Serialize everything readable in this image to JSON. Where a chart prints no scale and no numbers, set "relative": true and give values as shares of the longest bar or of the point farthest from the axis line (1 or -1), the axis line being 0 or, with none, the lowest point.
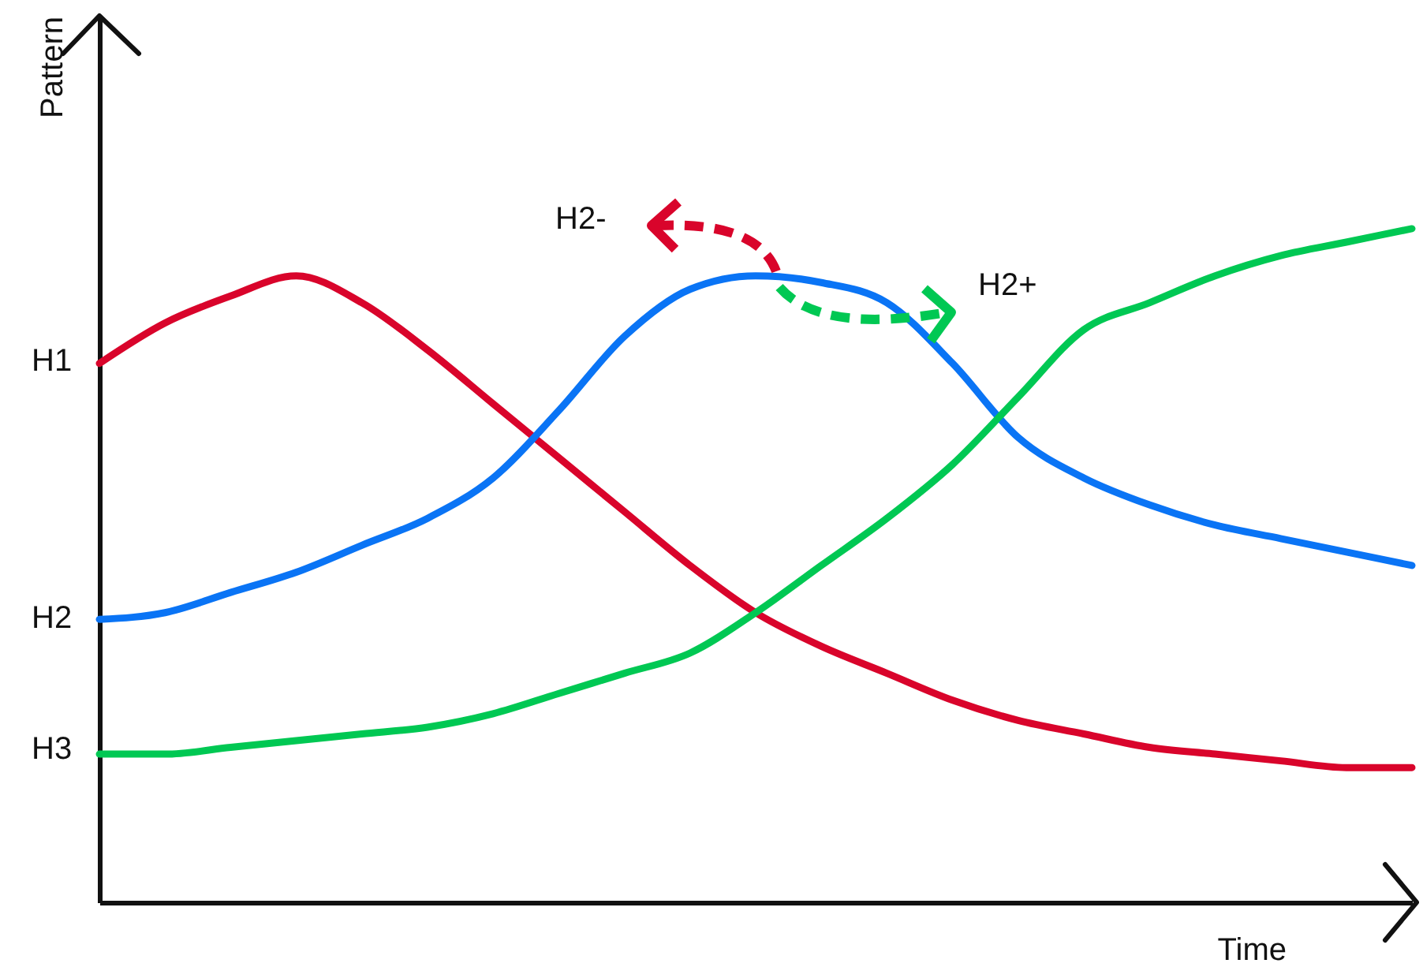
{
  "chart_data": {
    "type": "line",
    "relative": true,
    "xlabel": "Time",
    "ylabel": "Pattern",
    "categories": [
      null,
      null,
      null,
      null,
      null,
      null,
      null,
      null,
      null,
      null,
      null,
      null,
      null,
      null,
      null,
      null,
      null,
      null,
      null,
      null,
      null
    ],
    "series": [
      {
        "color": "#d9042b",
        "values": [
          0.8,
          0.86,
          0.9,
          0.93,
          0.89,
          0.82,
          0.74,
          0.66,
          0.58,
          0.5,
          0.43,
          0.38,
          0.34,
          0.3,
          0.27,
          0.25,
          0.23,
          0.22,
          0.21,
          0.2,
          0.2
        ]
      },
      {
        "color": "#0a74f5",
        "values": [
          0.42,
          0.43,
          0.46,
          0.49,
          0.53,
          0.57,
          0.63,
          0.73,
          0.84,
          0.91,
          0.93,
          0.92,
          0.89,
          0.8,
          0.69,
          0.63,
          0.59,
          0.56,
          0.54,
          0.52,
          0.5
        ]
      },
      {
        "color": "#00c853",
        "values": [
          0.22,
          0.22,
          0.23,
          0.24,
          0.25,
          0.26,
          0.28,
          0.31,
          0.34,
          0.37,
          0.43,
          0.5,
          0.57,
          0.65,
          0.75,
          0.85,
          0.89,
          0.93,
          0.96,
          0.98,
          1.0
        ]
      }
    ],
    "annotations": [
      "H1",
      "H2",
      "H3",
      "H2-",
      "H2+"
    ]
  }
}
